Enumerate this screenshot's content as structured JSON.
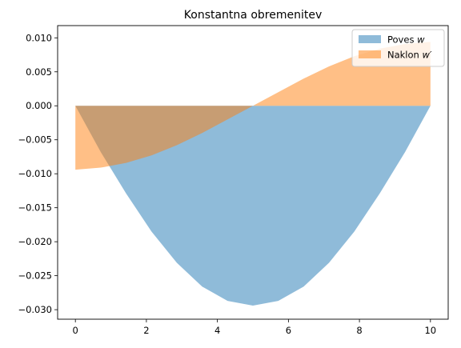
{
  "chart_data": {
    "type": "area",
    "title": "Konstantna obremenitev",
    "xlabel": "",
    "ylabel": "",
    "xlim": [
      -0.5,
      10.5
    ],
    "ylim": [
      -0.0314,
      0.0118
    ],
    "xticks": [
      "0",
      "2",
      "4",
      "6",
      "8",
      "10"
    ],
    "xtick_values": [
      0,
      2,
      4,
      6,
      8,
      10
    ],
    "yticks": [
      "0.010",
      "0.005",
      "0.000",
      "−0.005",
      "−0.010",
      "−0.015",
      "−0.020",
      "−0.025",
      "−0.030"
    ],
    "ytick_values": [
      0.01,
      0.005,
      0.0,
      -0.005,
      -0.01,
      -0.015,
      -0.02,
      -0.025,
      -0.03
    ],
    "grid": false,
    "legend_position": "top-right",
    "x": [
      0,
      0.714,
      1.429,
      2.143,
      2.857,
      3.571,
      4.286,
      5.0,
      5.714,
      6.429,
      7.143,
      7.857,
      8.571,
      9.286,
      10.0
    ],
    "series": [
      {
        "name": "Poves",
        "name_math": "w",
        "color": "#1f77b4",
        "alpha": 0.5,
        "values": [
          0.0,
          -0.0068,
          -0.0129,
          -0.0185,
          -0.0231,
          -0.0266,
          -0.0287,
          -0.0294,
          -0.0287,
          -0.0266,
          -0.0231,
          -0.0185,
          -0.0129,
          -0.0068,
          0.0
        ]
      },
      {
        "name": "Naklon",
        "name_math": "w′",
        "color": "#ff7f0e",
        "alpha": 0.5,
        "values": [
          -0.0094,
          -0.0091,
          -0.0084,
          -0.0073,
          -0.0058,
          -0.004,
          -0.002,
          0.0,
          0.002,
          0.004,
          0.0058,
          0.0073,
          0.0084,
          0.0091,
          0.0094
        ]
      }
    ]
  }
}
